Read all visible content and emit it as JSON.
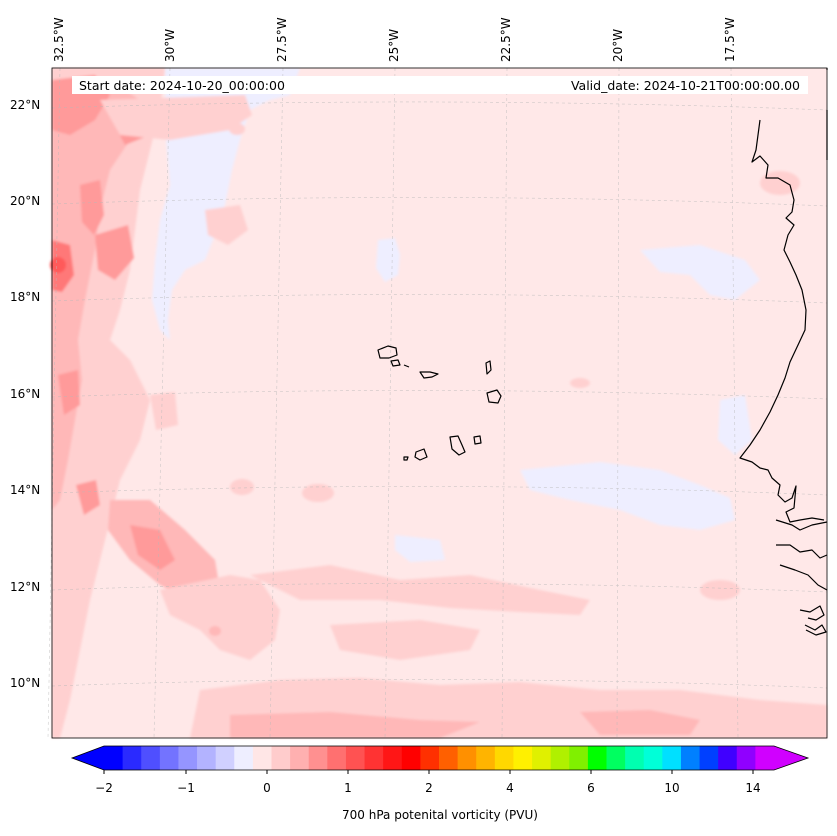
{
  "map": {
    "start_date": "Start date: 2024-10-20_00:00:00",
    "valid_date": "Valid_date: 2024-10-21T00:00:00.00",
    "lon_labels": [
      "32.5°W",
      "30°W",
      "27.5°W",
      "25°W",
      "22.5°W",
      "20°W",
      "17.5°W"
    ],
    "lat_labels": [
      "22°N",
      "20°N",
      "18°N",
      "16°N",
      "14°N",
      "12°N",
      "10°N"
    ],
    "colorbar": {
      "label": "700 hPa potenital vorticity (PVU)",
      "ticks": [
        "−2",
        "−1",
        "0",
        "1",
        "2",
        "4",
        "6",
        "10",
        "14"
      ],
      "colors": [
        "#0000ff",
        "#2a2aff",
        "#4f4fff",
        "#7373ff",
        "#9595ff",
        "#b3b3ff",
        "#d0d0ff",
        "#eeeeff",
        "#ffe6e6",
        "#ffcccc",
        "#ffb0b0",
        "#ff9090",
        "#ff7070",
        "#ff5252",
        "#ff3333",
        "#ff1616",
        "#ff0000",
        "#ff3000",
        "#ff6000",
        "#ff9000",
        "#ffb400",
        "#ffd800",
        "#fff000",
        "#e0f000",
        "#b0f000",
        "#80f000",
        "#00ff00",
        "#00ff60",
        "#00ffb0",
        "#00ffd8",
        "#00e0ff",
        "#0080ff",
        "#0040ff",
        "#4000ff",
        "#9000ff",
        "#d000ff"
      ],
      "under_color": "#0000ff",
      "over_color": "#d000ff"
    },
    "field_colors": {
      "background": "#ffe8e8",
      "light_pink": "#ffd0d0",
      "pink": "#ffb8b8",
      "medium_red": "#ff9a9a",
      "red": "#ff7878",
      "light_blue": "#eeeeff",
      "blue": "#c8c8ff",
      "deep_blue": "#9090ff"
    }
  }
}
